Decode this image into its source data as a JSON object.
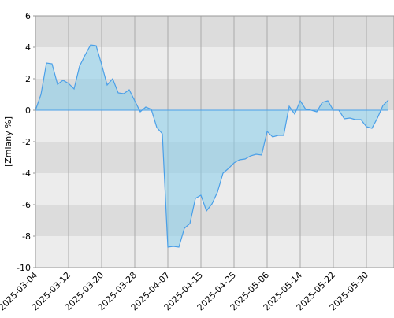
{
  "chart_data": {
    "type": "area",
    "y_label": "[Zmiany %]",
    "categories": [
      "2025-03-04",
      null,
      null,
      null,
      null,
      null,
      "2025-03-12",
      null,
      null,
      null,
      null,
      null,
      "2025-03-20",
      null,
      null,
      null,
      null,
      null,
      "2025-03-28",
      null,
      null,
      null,
      null,
      null,
      "2025-04-07",
      null,
      null,
      null,
      null,
      null,
      "2025-04-15",
      null,
      null,
      null,
      null,
      null,
      "2025-04-25",
      null,
      null,
      null,
      null,
      null,
      "2025-05-06",
      null,
      null,
      null,
      null,
      null,
      "2025-05-14",
      null,
      null,
      null,
      null,
      null,
      "2025-05-22",
      null,
      null,
      null,
      null,
      null,
      "2025-05-30",
      null,
      null,
      null,
      null
    ],
    "values": [
      0,
      1.0,
      3.0,
      2.95,
      1.65,
      1.9,
      1.7,
      1.35,
      2.8,
      3.5,
      4.15,
      4.1,
      2.9,
      1.6,
      2.0,
      1.1,
      1.05,
      1.3,
      0.6,
      -0.1,
      0.2,
      0.05,
      -1.1,
      -1.5,
      -8.7,
      -8.65,
      -8.7,
      -7.5,
      -7.2,
      -5.6,
      -5.4,
      -6.4,
      -5.95,
      -5.2,
      -4.0,
      -3.7,
      -3.35,
      -3.15,
      -3.1,
      -2.9,
      -2.8,
      -2.85,
      -1.35,
      -1.7,
      -1.6,
      -1.6,
      0.25,
      -0.25,
      0.6,
      0.05,
      0.0,
      -0.1,
      0.5,
      0.6,
      0.0,
      0.0,
      -0.55,
      -0.5,
      -0.6,
      -0.6,
      -1.05,
      -1.15,
      -0.5,
      0.3,
      0.65
    ],
    "color": "#4a9fe8",
    "fill_color": "#87ceeb",
    "band_colors": [
      "#dcdcdc",
      "#ececec"
    ],
    "ylim": [
      -10,
      6
    ],
    "yticks": [
      -10,
      -8,
      -6,
      -4,
      -2,
      0,
      2,
      4,
      6
    ],
    "grid": true
  }
}
